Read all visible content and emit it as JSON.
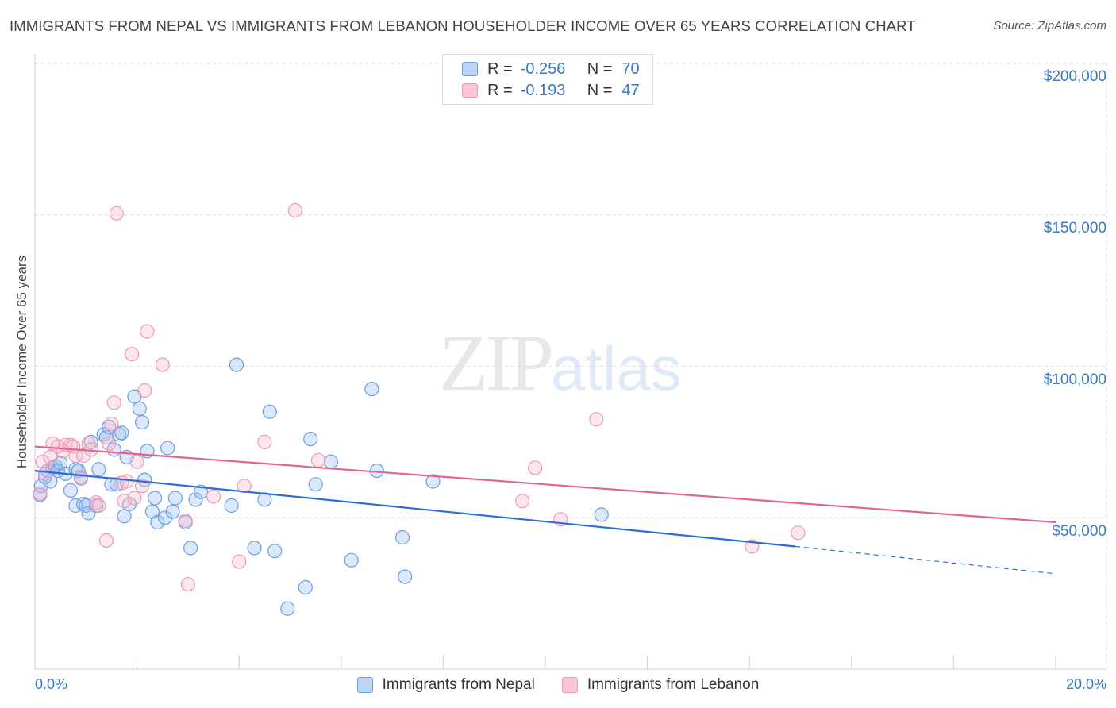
{
  "header": {
    "title": "IMMIGRANTS FROM NEPAL VS IMMIGRANTS FROM LEBANON HOUSEHOLDER INCOME OVER 65 YEARS CORRELATION CHART",
    "source": "Source: ZipAtlas.com"
  },
  "legend_top": {
    "rows": [
      {
        "r_label": "R =",
        "r_value": "-0.256",
        "n_label": "N =",
        "n_value": "70"
      },
      {
        "r_label": "R =",
        "r_value": "-0.193",
        "n_label": "N =",
        "n_value": "47"
      }
    ]
  },
  "watermark": {
    "zip": "ZIP",
    "atlas": "atlas"
  },
  "chart_data": {
    "type": "scatter",
    "title": "IMMIGRANTS FROM NEPAL VS IMMIGRANTS FROM LEBANON HOUSEHOLDER INCOME OVER 65 YEARS CORRELATION CHART",
    "ylabel": "Householder Income Over 65 years",
    "xlabel": "",
    "xlim": [
      0,
      20
    ],
    "ylim": [
      0,
      210000
    ],
    "x_unit": "%",
    "x_tick_labels": [
      "0.0%",
      "20.0%"
    ],
    "y_ticks": [
      50000,
      100000,
      150000,
      200000
    ],
    "y_tick_labels": [
      "$50,000",
      "$100,000",
      "$150,000",
      "$200,000"
    ],
    "grid": true,
    "legend_position": "bottom",
    "colors": {
      "nepal": "#6d9fe0",
      "lebanon": "#ee9ab4",
      "nepal_line": "#2a6fd1",
      "lebanon_line": "#e0668f"
    },
    "series": [
      {
        "name": "Immigrants from Nepal",
        "key": "nepal",
        "r": -0.256,
        "n": 70,
        "trend": {
          "x0": 0,
          "y0": 65500,
          "x1": 14.9,
          "y1": 40500,
          "dash_to_x": 20,
          "dash_to_y": 31500
        },
        "points": [
          [
            0.1,
            57500
          ],
          [
            0.12,
            60500
          ],
          [
            0.2,
            63500
          ],
          [
            0.25,
            65500
          ],
          [
            0.3,
            62000
          ],
          [
            0.35,
            66500
          ],
          [
            0.4,
            67000
          ],
          [
            0.45,
            65500
          ],
          [
            0.5,
            68000
          ],
          [
            0.6,
            64500
          ],
          [
            0.7,
            59000
          ],
          [
            0.8,
            54000
          ],
          [
            0.8,
            66000
          ],
          [
            0.85,
            65500
          ],
          [
            0.9,
            63000
          ],
          [
            0.95,
            54500
          ],
          [
            1.0,
            54000
          ],
          [
            1.05,
            51500
          ],
          [
            1.1,
            75000
          ],
          [
            1.2,
            54000
          ],
          [
            1.25,
            66000
          ],
          [
            1.35,
            77500
          ],
          [
            1.4,
            76500
          ],
          [
            1.45,
            80000
          ],
          [
            1.5,
            61000
          ],
          [
            1.55,
            72500
          ],
          [
            1.6,
            61000
          ],
          [
            1.65,
            77500
          ],
          [
            1.7,
            78000
          ],
          [
            1.75,
            50500
          ],
          [
            1.8,
            70000
          ],
          [
            1.85,
            54500
          ],
          [
            1.95,
            90000
          ],
          [
            2.05,
            86000
          ],
          [
            2.1,
            81500
          ],
          [
            2.15,
            62500
          ],
          [
            2.2,
            72000
          ],
          [
            2.3,
            52000
          ],
          [
            2.35,
            56500
          ],
          [
            2.4,
            48500
          ],
          [
            2.55,
            50000
          ],
          [
            2.6,
            73000
          ],
          [
            2.7,
            52000
          ],
          [
            2.75,
            56500
          ],
          [
            2.95,
            48500
          ],
          [
            3.05,
            40000
          ],
          [
            3.15,
            56000
          ],
          [
            3.25,
            58500
          ],
          [
            3.85,
            54000
          ],
          [
            3.95,
            100500
          ],
          [
            4.3,
            40000
          ],
          [
            4.5,
            56000
          ],
          [
            4.6,
            85000
          ],
          [
            4.7,
            39000
          ],
          [
            4.95,
            20000
          ],
          [
            5.3,
            27000
          ],
          [
            5.4,
            76000
          ],
          [
            5.5,
            61000
          ],
          [
            5.8,
            68500
          ],
          [
            6.2,
            36000
          ],
          [
            6.6,
            92500
          ],
          [
            6.7,
            65500
          ],
          [
            7.2,
            43500
          ],
          [
            7.25,
            30500
          ],
          [
            7.8,
            62000
          ],
          [
            11.1,
            51000
          ]
        ]
      },
      {
        "name": "Immigrants from Lebanon",
        "key": "lebanon",
        "r": -0.193,
        "n": 47,
        "trend": {
          "x0": 0,
          "y0": 73500,
          "x1": 20,
          "y1": 48500
        },
        "points": [
          [
            0.1,
            58000
          ],
          [
            0.15,
            68500
          ],
          [
            0.2,
            64500
          ],
          [
            0.3,
            70000
          ],
          [
            0.35,
            74500
          ],
          [
            0.45,
            73500
          ],
          [
            0.55,
            72000
          ],
          [
            0.6,
            74000
          ],
          [
            0.7,
            74000
          ],
          [
            0.75,
            73500
          ],
          [
            0.8,
            70500
          ],
          [
            0.9,
            63500
          ],
          [
            0.95,
            70500
          ],
          [
            1.05,
            74500
          ],
          [
            1.1,
            72500
          ],
          [
            1.2,
            55000
          ],
          [
            1.25,
            54000
          ],
          [
            1.4,
            42500
          ],
          [
            1.45,
            74500
          ],
          [
            1.5,
            81000
          ],
          [
            1.55,
            88000
          ],
          [
            1.6,
            150500
          ],
          [
            1.7,
            61500
          ],
          [
            1.75,
            55500
          ],
          [
            1.8,
            62000
          ],
          [
            1.9,
            104000
          ],
          [
            1.95,
            56500
          ],
          [
            2.0,
            68500
          ],
          [
            2.1,
            60500
          ],
          [
            2.15,
            92000
          ],
          [
            2.2,
            111500
          ],
          [
            2.5,
            100500
          ],
          [
            2.95,
            49000
          ],
          [
            3.0,
            28000
          ],
          [
            3.5,
            57000
          ],
          [
            4.0,
            35500
          ],
          [
            4.1,
            60500
          ],
          [
            4.5,
            75000
          ],
          [
            5.1,
            151500
          ],
          [
            5.55,
            69000
          ],
          [
            9.55,
            55500
          ],
          [
            9.8,
            66500
          ],
          [
            10.3,
            49500
          ],
          [
            11.0,
            82500
          ],
          [
            14.05,
            40500
          ],
          [
            14.95,
            45000
          ]
        ]
      }
    ]
  },
  "legend_bottom": {
    "items": [
      {
        "label": "Immigrants from Nepal"
      },
      {
        "label": "Immigrants from Lebanon"
      }
    ]
  }
}
